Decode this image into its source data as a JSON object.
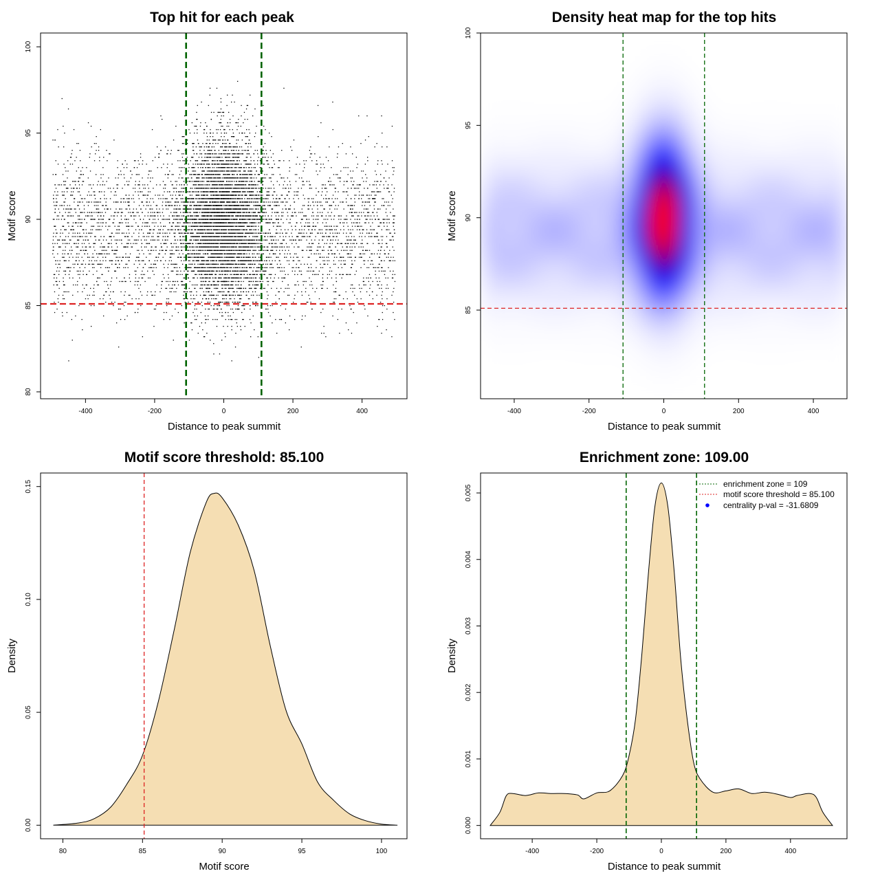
{
  "chart_data": [
    {
      "id": "scatter",
      "type": "scatter",
      "title": "Top hit for each peak",
      "xlabel": "Distance to peak summit",
      "ylabel": "Motif score",
      "xlim": [
        -530,
        530
      ],
      "ylim": [
        79.6,
        100.8
      ],
      "xticks": [
        -400,
        -200,
        0,
        200,
        400
      ],
      "yticks": [
        80,
        85,
        90,
        95,
        100
      ],
      "threshold_y": 85.1,
      "zone_x": [
        -109,
        109
      ],
      "threshold_color": "#dd2222",
      "zone_color": "#006400",
      "point_color": "#000000",
      "point_count": 9000,
      "distribution": {
        "central": {
          "x_mean": 0,
          "x_sd": 60,
          "y_mean": 90,
          "y_sd": 2.4,
          "share": 0.55
        },
        "background": {
          "x_range": [
            -495,
            495
          ],
          "y_mean": 89.3,
          "y_sd": 2.3,
          "share": 0.45
        }
      }
    },
    {
      "id": "heatmap",
      "type": "heatmap",
      "title": "Density heat map for the top hits",
      "xlabel": "Distance to peak summit",
      "ylabel": "Motif score",
      "xlim": [
        -490,
        490
      ],
      "ylim": [
        80.2,
        100
      ],
      "xticks": [
        -400,
        -200,
        0,
        200,
        400
      ],
      "yticks": [
        85,
        90,
        95,
        100
      ],
      "threshold_y": 85.1,
      "zone_x": [
        -109,
        109
      ],
      "threshold_color": "#dd2222",
      "zone_color": "#006400",
      "color_scale": [
        "#ffffff",
        "#0000ff",
        "#ff0000"
      ],
      "peak": {
        "x": 0,
        "y": 90,
        "x_sd": 45,
        "y_sd": 2.6
      }
    },
    {
      "id": "score-density",
      "type": "area",
      "title": "Motif score threshold: 85.100",
      "xlabel": "Motif score",
      "ylabel": "Density",
      "xlim": [
        78.6,
        101.6
      ],
      "ylim": [
        -0.006,
        0.156
      ],
      "xticks": [
        80,
        85,
        90,
        95,
        100
      ],
      "yticks": [
        0.0,
        0.05,
        0.1,
        0.15
      ],
      "ytick_labels": [
        "0.00",
        "0.05",
        "0.10",
        "0.15"
      ],
      "threshold_x": 85.1,
      "threshold_color": "#dd2222",
      "fill_color": "#f5deb3",
      "x": [
        79.4,
        81,
        82,
        83,
        84,
        85,
        86,
        87,
        88,
        89,
        89.5,
        90,
        91,
        92,
        93,
        94,
        95,
        96,
        97,
        98,
        99,
        100,
        101
      ],
      "y": [
        0.0,
        0.001,
        0.003,
        0.008,
        0.018,
        0.031,
        0.055,
        0.087,
        0.121,
        0.143,
        0.147,
        0.145,
        0.133,
        0.113,
        0.08,
        0.051,
        0.036,
        0.019,
        0.011,
        0.005,
        0.002,
        0.0005,
        0.0
      ]
    },
    {
      "id": "distance-density",
      "type": "area",
      "title": "Enrichment zone: 109.00",
      "xlabel": "Distance to peak summit",
      "ylabel": "Density",
      "xlim": [
        -560,
        575
      ],
      "ylim": [
        -0.0002,
        0.0053
      ],
      "xticks": [
        -400,
        -200,
        0,
        200,
        400
      ],
      "yticks": [
        0.0,
        0.001,
        0.002,
        0.003,
        0.004,
        0.005
      ],
      "ytick_labels": [
        "0.000",
        "0.001",
        "0.002",
        "0.003",
        "0.004",
        "0.005"
      ],
      "zone_x": [
        -109,
        109
      ],
      "zone_color": "#006400",
      "fill_color": "#f5deb3",
      "x": [
        -530,
        -500,
        -480,
        -460,
        -420,
        -380,
        -340,
        -300,
        -260,
        -240,
        -200,
        -160,
        -120,
        -100,
        -80,
        -60,
        -40,
        -20,
        0,
        20,
        40,
        60,
        80,
        100,
        120,
        160,
        200,
        240,
        280,
        320,
        360,
        400,
        420,
        460,
        480,
        500,
        530
      ],
      "y": [
        0.0,
        0.0002,
        0.00045,
        0.00048,
        0.00045,
        0.00049,
        0.00048,
        0.00048,
        0.00046,
        0.0004,
        0.00049,
        0.00052,
        0.00075,
        0.00105,
        0.0016,
        0.0026,
        0.0038,
        0.0048,
        0.00515,
        0.0048,
        0.0038,
        0.0025,
        0.0016,
        0.00095,
        0.0007,
        0.0005,
        0.00052,
        0.00055,
        0.00048,
        0.0005,
        0.00047,
        0.00042,
        0.00045,
        0.00048,
        0.00042,
        0.0002,
        0.0
      ],
      "legend": {
        "placement": "top-right",
        "entries": [
          {
            "label": "enrichment zone = 109",
            "color": "#006400",
            "symbol": "dotted-line"
          },
          {
            "label": "motif score threshold = 85.100",
            "color": "#dd2222",
            "symbol": "dotted-line"
          },
          {
            "label": "centrality p-val = -31.6809",
            "color": "#0000ff",
            "symbol": "dot"
          }
        ]
      }
    }
  ]
}
